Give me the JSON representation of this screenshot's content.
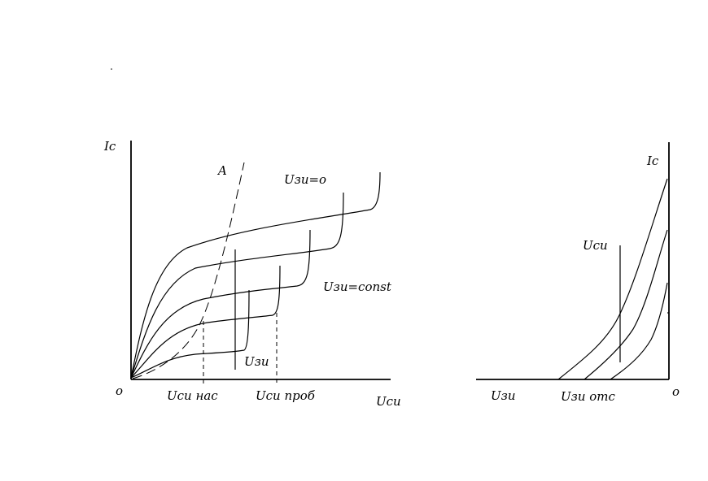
{
  "left_graph": {
    "y_axis_label": "Ic",
    "x_axis_label": "Uси",
    "origin_label": "o",
    "line_a_label": "A",
    "top_curve_label": "Uзи=o",
    "mid_curve_label": "Uзи=const",
    "bottom_curve_label": "Uзи",
    "x_tick_sat": "Uси нас",
    "x_tick_break": "Uси проб"
  },
  "right_graph": {
    "y_axis_label": "Ic",
    "x_axis_label": "Uзи",
    "origin_label": "o",
    "x_tick_cutoff": "Uзи отс",
    "param_label": "Uси"
  },
  "colors": {
    "ink": "#000000",
    "background": "#ffffff"
  }
}
